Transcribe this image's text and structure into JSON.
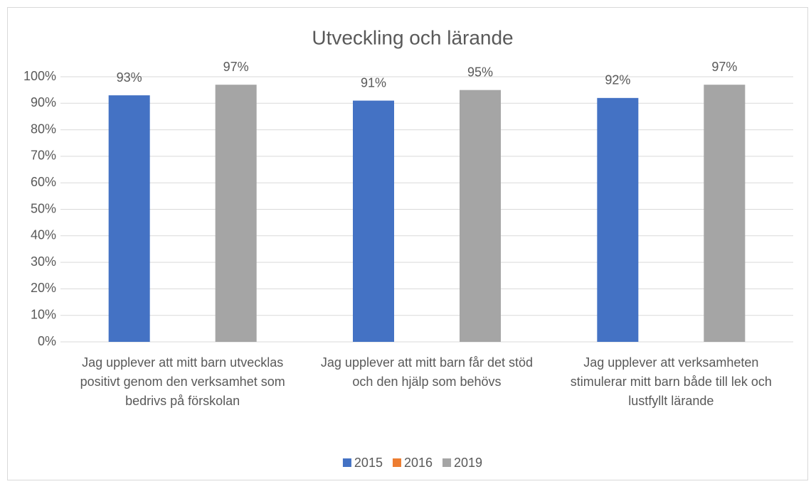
{
  "chart_data": {
    "type": "bar",
    "title": "Utveckling och lärande",
    "categories": [
      "Jag upplever att mitt barn utvecklas positivt genom den verksamhet som bedrivs på förskolan",
      "Jag upplever att mitt barn får det stöd och den hjälp som behövs",
      "Jag upplever att verksamheten stimulerar mitt barn både till lek och lustfyllt lärande"
    ],
    "series": [
      {
        "name": "2015",
        "color": "#4472c4",
        "values": [
          93,
          91,
          92
        ],
        "value_labels": [
          "93%",
          "91%",
          "92%"
        ]
      },
      {
        "name": "2016",
        "color": "#ed7d31",
        "values": [
          null,
          null,
          null
        ],
        "value_labels": [
          null,
          null,
          null
        ]
      },
      {
        "name": "2019",
        "color": "#a5a5a5",
        "values": [
          97,
          95,
          97
        ],
        "value_labels": [
          "97%",
          "95%",
          "97%"
        ]
      }
    ],
    "ylim": [
      0,
      100
    ],
    "yticks": [
      {
        "value": 0,
        "label": "0%"
      },
      {
        "value": 10,
        "label": "10%"
      },
      {
        "value": 20,
        "label": "20%"
      },
      {
        "value": 30,
        "label": "30%"
      },
      {
        "value": 40,
        "label": "40%"
      },
      {
        "value": 50,
        "label": "50%"
      },
      {
        "value": 60,
        "label": "60%"
      },
      {
        "value": 70,
        "label": "70%"
      },
      {
        "value": 80,
        "label": "80%"
      },
      {
        "value": 90,
        "label": "90%"
      },
      {
        "value": 100,
        "label": "100%"
      }
    ],
    "grid": true,
    "legend": "bottom"
  }
}
